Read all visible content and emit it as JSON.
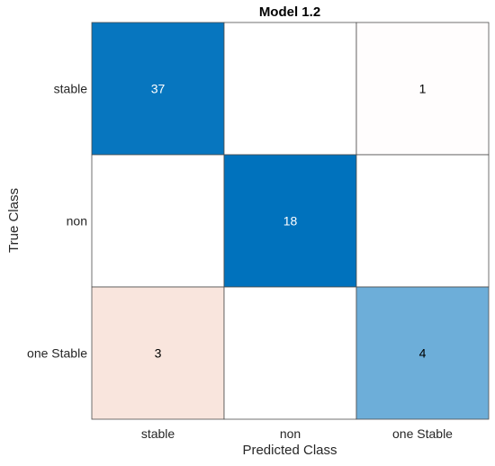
{
  "chart_data": {
    "type": "heatmap",
    "title": "Model 1.2",
    "xlabel": "Predicted Class",
    "ylabel": "True Class",
    "classes": [
      "stable",
      "non",
      "one Stable"
    ],
    "matrix": [
      [
        37,
        0,
        1
      ],
      [
        0,
        18,
        0
      ],
      [
        3,
        0,
        4
      ]
    ],
    "diagonal_color": "#0072BD",
    "offdiagonal_color": "#D95319",
    "grid": true
  }
}
